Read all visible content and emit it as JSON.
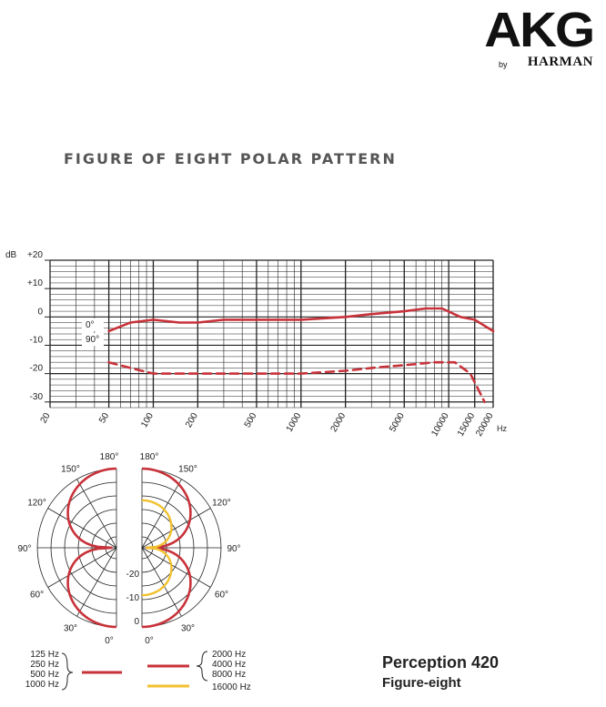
{
  "brand": {
    "name": "AKG",
    "by": "by",
    "parent": "HARMAN"
  },
  "title": "FIGURE OF EIGHT POLAR PATTERN",
  "product": {
    "name": "Perception 420",
    "pattern": "Figure-eight"
  },
  "colors": {
    "red": "#c8323a",
    "yellow": "#f2c12e",
    "grid": "#222222"
  },
  "chart_data": [
    {
      "type": "line",
      "ylabel": "dB",
      "xlabel": "Hz",
      "x_scale": "log",
      "xlim": [
        20,
        20000
      ],
      "ylim": [
        -32,
        20
      ],
      "y_ticks": [
        "+20",
        "+10",
        "0",
        "-10",
        "-20",
        "-30"
      ],
      "y_tick_values": [
        20,
        10,
        0,
        -10,
        -20,
        -30
      ],
      "x_ticks": [
        "20",
        "50",
        "100",
        "200",
        "500",
        "1000",
        "2000",
        "5000",
        "10000",
        "15000",
        "20000"
      ],
      "x_tick_values": [
        20,
        50,
        100,
        200,
        500,
        1000,
        2000,
        5000,
        10000,
        15000,
        20000
      ],
      "grid": true,
      "series": [
        {
          "name": "0°",
          "style": "solid",
          "color": "#c8323a",
          "x": [
            50,
            70,
            100,
            150,
            200,
            300,
            500,
            1000,
            2000,
            3000,
            5000,
            7000,
            9000,
            12000,
            15000,
            20000
          ],
          "y": [
            -5,
            -2,
            -1,
            -2,
            -2,
            -1,
            -1,
            -1,
            0,
            1,
            2,
            3,
            3,
            0,
            -1,
            -5
          ]
        },
        {
          "name": "90°",
          "style": "dashed",
          "color": "#c8323a",
          "x": [
            50,
            70,
            100,
            200,
            500,
            1000,
            2000,
            3000,
            5000,
            8000,
            11000,
            14000,
            16000,
            17500
          ],
          "y": [
            -16,
            -18,
            -20,
            -20,
            -20,
            -20,
            -19,
            -18,
            -17,
            -16,
            -16,
            -20,
            -26,
            -30
          ]
        }
      ]
    },
    {
      "type": "polar",
      "angle_labels_left": [
        "180°",
        "150°",
        "120°",
        "90°",
        "60°",
        "30°",
        "0°"
      ],
      "angle_labels_right": [
        "180°",
        "150°",
        "120°",
        "90°",
        "60°",
        "30°",
        "0°"
      ],
      "radial_labels": [
        "-20",
        "-10",
        "0"
      ],
      "legend_left": {
        "freqs": [
          "125 Hz",
          "250 Hz",
          "500 Hz",
          "1000 Hz"
        ],
        "color": "#c8323a"
      },
      "legend_right": [
        {
          "freqs": [
            "2000 Hz",
            "4000 Hz",
            "8000 Hz"
          ],
          "color": "#c8323a"
        },
        {
          "freqs": [
            "16000 Hz"
          ],
          "color": "#f2c12e"
        }
      ]
    }
  ]
}
